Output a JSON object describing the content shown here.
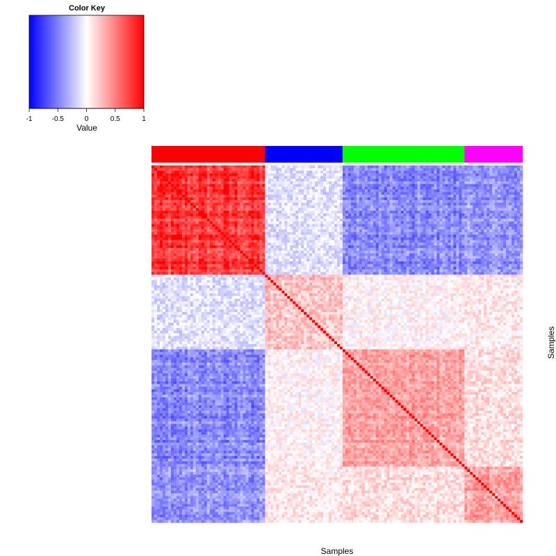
{
  "chart_data": {
    "type": "heatmap",
    "color_key": {
      "title": "Color Key",
      "xlabel": "Value",
      "range": [
        -1,
        1
      ],
      "ticks": [
        "-1",
        "-0.5",
        "0",
        "0.5",
        "1"
      ],
      "colors": {
        "low": "#0000ff",
        "mid": "#ffffff",
        "high": "#ff0000"
      }
    },
    "xlabel": "Samples",
    "ylabel": "Samples",
    "n_samples": 134,
    "groups": [
      {
        "size": 41,
        "color": "#ff0000"
      },
      {
        "size": 28,
        "color": "#0000ff"
      },
      {
        "size": 44,
        "color": "#00ff00"
      },
      {
        "size": 21,
        "color": "#ff00ff"
      }
    ],
    "group_mean_correlation": [
      [
        0.75,
        -0.15,
        -0.45,
        -0.4
      ],
      [
        -0.15,
        0.3,
        0.05,
        0.1
      ],
      [
        -0.45,
        0.05,
        0.35,
        0.15
      ],
      [
        -0.4,
        0.1,
        0.15,
        0.35
      ]
    ],
    "diagonal_value": 1
  }
}
